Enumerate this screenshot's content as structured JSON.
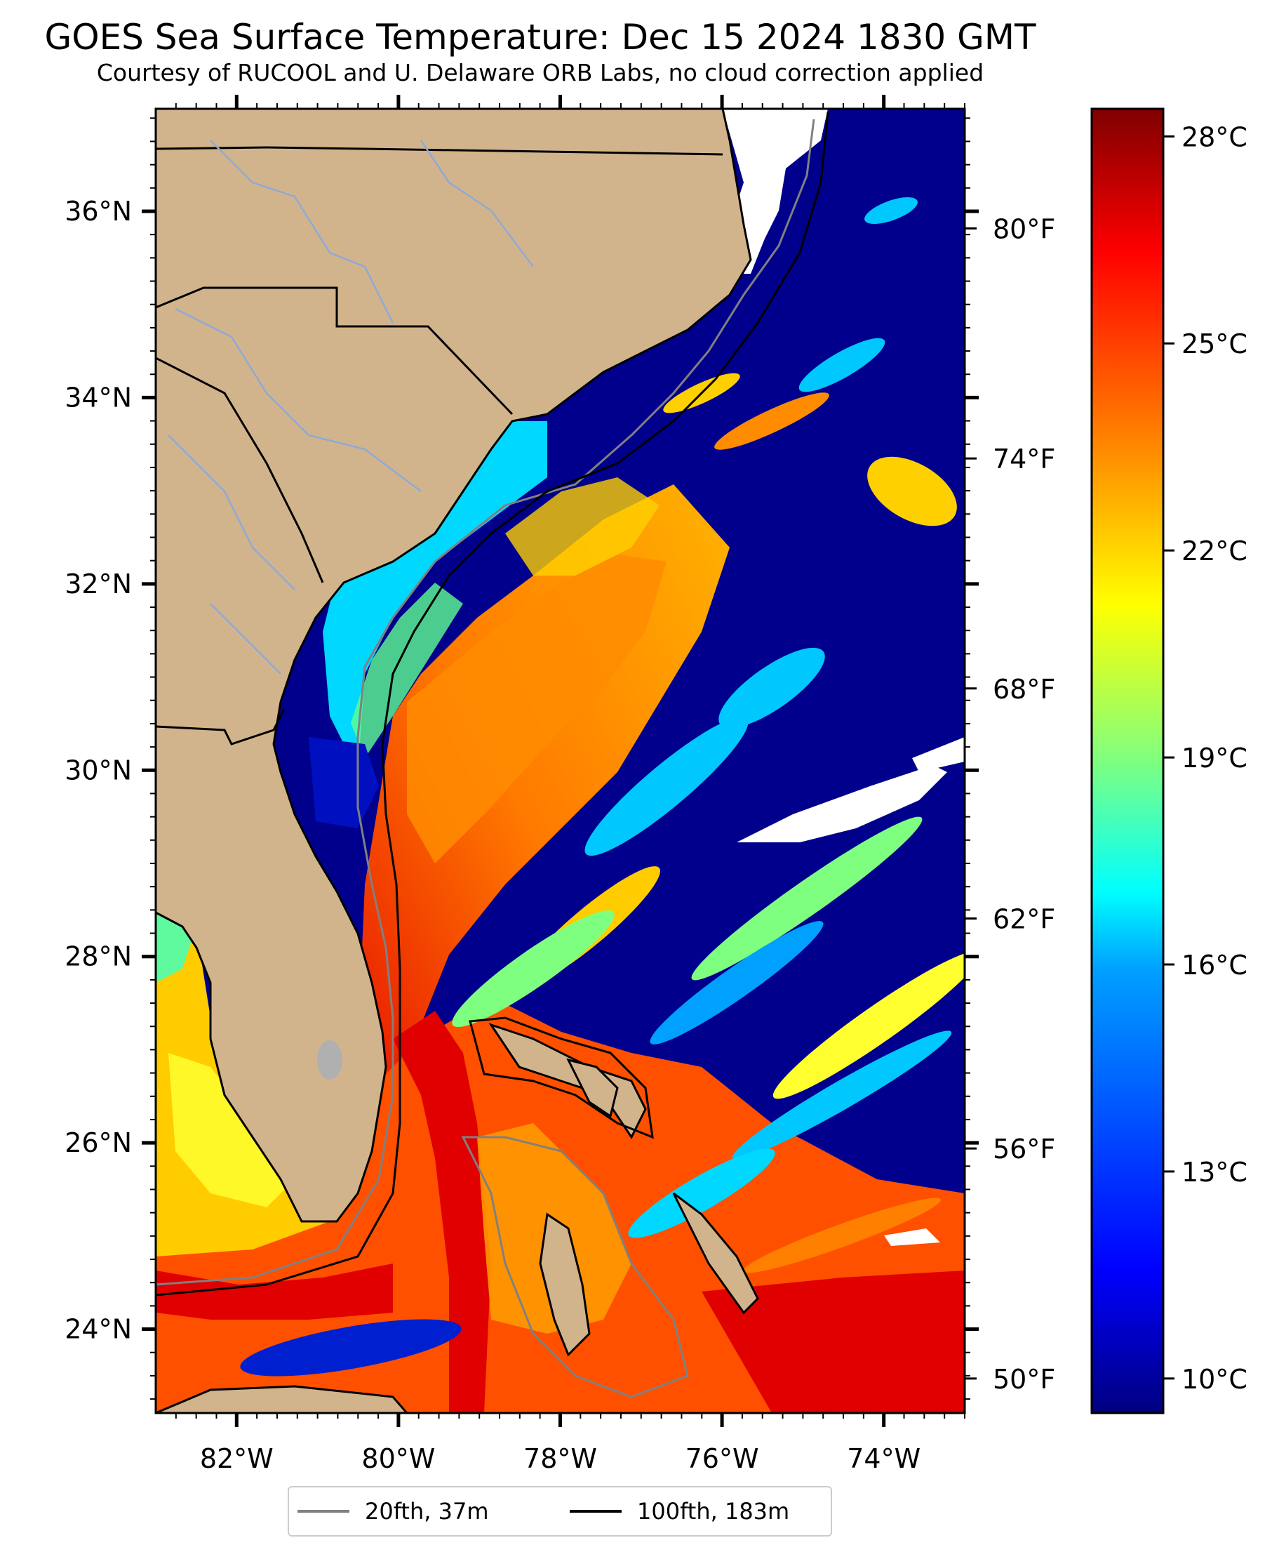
{
  "title": "GOES Sea Surface Temperature: Dec 15 2024 1830 GMT",
  "subtitle": "Courtesy of RUCOOL and U. Delaware ORB Labs, no cloud correction applied",
  "map": {
    "lat_range": [
      23.1,
      37.1
    ],
    "lon_range": [
      -83.0,
      -73.0
    ],
    "lat_ticks": [
      "24°N",
      "26°N",
      "28°N",
      "30°N",
      "32°N",
      "34°N",
      "36°N"
    ],
    "lon_ticks": [
      "82°W",
      "80°W",
      "78°W",
      "76°W",
      "74°W"
    ],
    "fahrenheit_ticks": [
      "80°F",
      "74°F",
      "68°F",
      "62°F",
      "56°F",
      "50°F"
    ],
    "colors": {
      "land": "#d2b48c",
      "cloud": "#ffffff",
      "contour_20fth": "#808080",
      "contour_100fth": "#000000"
    }
  },
  "colorbar": {
    "min_c": 9.5,
    "max_c": 28.4,
    "celsius_ticks": [
      "10°C",
      "13°C",
      "16°C",
      "19°C",
      "22°C",
      "25°C",
      "28°C"
    ],
    "stops": [
      "#00007f",
      "#0000ff",
      "#007fff",
      "#00ffff",
      "#7fff7f",
      "#ffff00",
      "#ff7f00",
      "#ff0000",
      "#7f0000"
    ]
  },
  "legend": {
    "items": [
      {
        "label": "20fth, 37m",
        "color": "#808080"
      },
      {
        "label": "100fth, 183m",
        "color": "#000000"
      }
    ]
  }
}
